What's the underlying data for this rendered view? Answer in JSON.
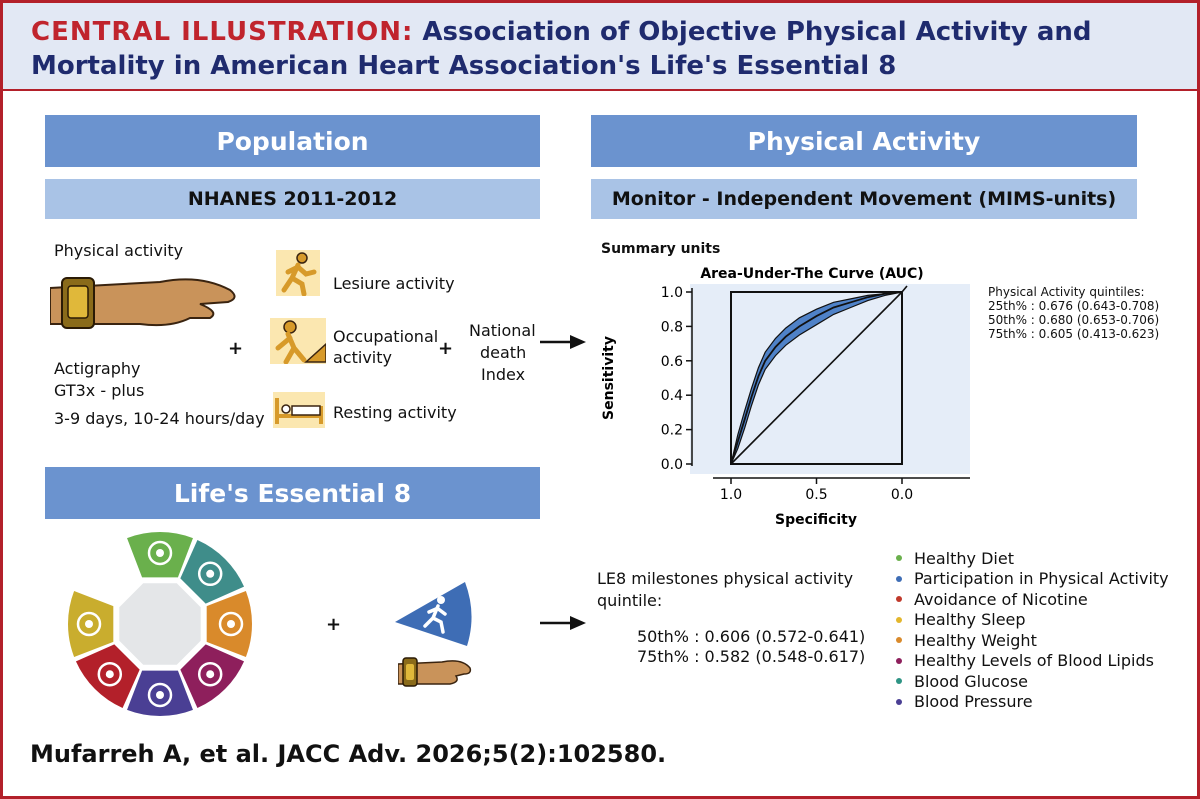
{
  "title": {
    "lead": "CENTRAL ILLUSTRATION:",
    "rest": " Association of Objective Physical Activity and Mortality in American Heart Association's Life's Essential 8"
  },
  "population": {
    "header": "Population",
    "subheader": "NHANES 2011-2012",
    "physical_activity_label": "Physical activity",
    "actigraphy_line1": "Actigraphy",
    "actigraphy_line2": "GT3x - plus",
    "duration": "3-9 days, 10-24 hours/day",
    "plus": "+",
    "activities": {
      "leisure": "Lesiure activity",
      "occupational_line1": "Occupational",
      "occupational_line2": "activity",
      "resting": "Resting activity"
    },
    "death_index_line1": "National",
    "death_index_line2": "death",
    "death_index_line3": "Index"
  },
  "physical_activity": {
    "header": "Physical Activity",
    "subheader": "Monitor - Independent Movement (MIMS-units)",
    "summary_units": "Summary units",
    "quintiles_title": "Physical Activity quintiles:",
    "quintiles": [
      "25th% : 0.676 (0.643-0.708)",
      "50th% : 0.680 (0.653-0.706)",
      "75th% : 0.605 (0.413-0.623)"
    ]
  },
  "chart_data": {
    "type": "line",
    "title": "Area-Under-The Curve (AUC)",
    "xlabel": "Specificity",
    "ylabel": "Sensitivity",
    "x_ticks": [
      "1.0",
      "0.5",
      "0.0"
    ],
    "y_ticks": [
      "0.0",
      "0.2",
      "0.4",
      "0.6",
      "0.8",
      "1.0"
    ],
    "xlim": [
      1.0,
      0.0
    ],
    "ylim": [
      0.0,
      1.0
    ],
    "grid": false,
    "series": [
      {
        "role": "roc-curve",
        "x": [
          1.0,
          0.96,
          0.92,
          0.88,
          0.84,
          0.8,
          0.74,
          0.68,
          0.6,
          0.5,
          0.4,
          0.3,
          0.2,
          0.1,
          0.0
        ],
        "y": [
          0.0,
          0.13,
          0.26,
          0.39,
          0.51,
          0.6,
          0.68,
          0.74,
          0.8,
          0.86,
          0.91,
          0.94,
          0.97,
          0.99,
          1.0
        ]
      },
      {
        "role": "ci-upper",
        "x": [
          1.0,
          0.96,
          0.92,
          0.88,
          0.84,
          0.8,
          0.74,
          0.68,
          0.6,
          0.5,
          0.4,
          0.3,
          0.2,
          0.1,
          0.0
        ],
        "y": [
          0.0,
          0.17,
          0.31,
          0.44,
          0.56,
          0.65,
          0.73,
          0.79,
          0.85,
          0.9,
          0.94,
          0.96,
          0.98,
          0.99,
          1.0
        ]
      },
      {
        "role": "ci-lower",
        "x": [
          1.0,
          0.96,
          0.92,
          0.88,
          0.84,
          0.8,
          0.74,
          0.68,
          0.6,
          0.5,
          0.4,
          0.3,
          0.2,
          0.1,
          0.0
        ],
        "y": [
          0.0,
          0.09,
          0.21,
          0.34,
          0.46,
          0.55,
          0.63,
          0.69,
          0.75,
          0.81,
          0.87,
          0.91,
          0.95,
          0.98,
          1.0
        ]
      },
      {
        "role": "reference",
        "x": [
          1.0,
          0.0
        ],
        "y": [
          0.0,
          1.0
        ]
      }
    ]
  },
  "le8": {
    "header": "Life's Essential 8",
    "plus": "+",
    "milestones_title_line1": "LE8 milestones physical activity",
    "milestones_title_line2": "quintile:",
    "milestones": [
      "50th% : 0.606 (0.572-0.641)",
      "75th% : 0.582 (0.548-0.617)"
    ],
    "legend": [
      {
        "label": "Healthy Diet",
        "color": "#6ab04c"
      },
      {
        "label": "Participation in Physical Activity",
        "color": "#3e6db5"
      },
      {
        "label": "Avoidance of Nicotine",
        "color": "#c0392b"
      },
      {
        "label": "Healthy Sleep",
        "color": "#e3b62c"
      },
      {
        "label": "Healthy Weight",
        "color": "#d98a2b"
      },
      {
        "label": "Healthy Levels of Blood Lipids",
        "color": "#8e1f5c"
      },
      {
        "label": "Blood Glucose",
        "color": "#2e9484"
      },
      {
        "label": "Blood Pressure",
        "color": "#4a3f94"
      }
    ],
    "wheel_segments": [
      {
        "name": "healthy-diet",
        "color": "#6ab04c",
        "icon": "carrot-apple-icon"
      },
      {
        "name": "blood-glucose",
        "color": "#3f8d8a",
        "icon": "glucose-meter-icon"
      },
      {
        "name": "healthy-weight",
        "color": "#d98a2b",
        "icon": "scale-icon"
      },
      {
        "name": "blood-lipids",
        "color": "#8e1f5c",
        "icon": "lipids-icon"
      },
      {
        "name": "blood-pressure",
        "color": "#4a3f94",
        "icon": "blood-pressure-cuff-icon"
      },
      {
        "name": "nicotine",
        "color": "#b3202a",
        "icon": "no-smoking-icon"
      },
      {
        "name": "healthy-sleep",
        "color": "#c9ad2e",
        "icon": "bed-icon"
      }
    ]
  },
  "citation": "Mufarreh A, et al. JACC Adv. 2026;5(2):102580."
}
